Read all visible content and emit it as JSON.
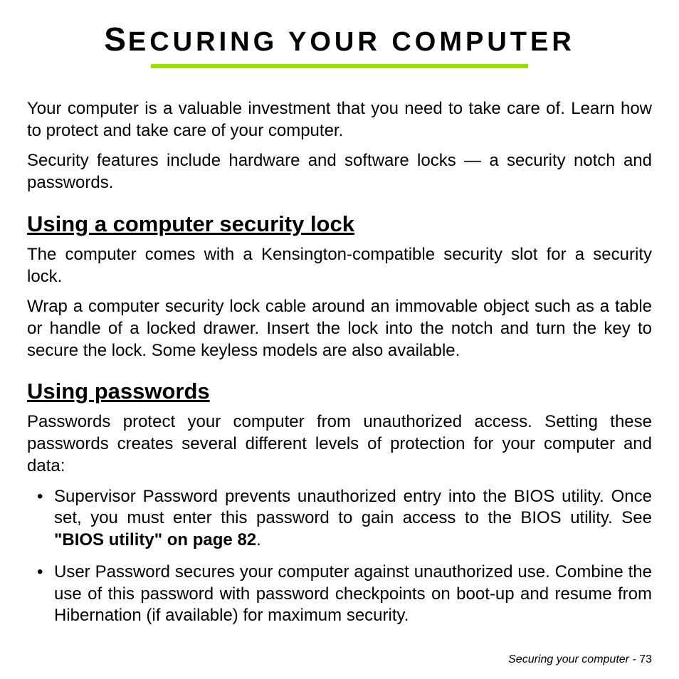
{
  "title": {
    "first_letter": "S",
    "rest": "ECURING YOUR COMPUTER"
  },
  "intro": {
    "p1": "Your computer is a valuable investment that you need to take care of. Learn how to protect and take care of your computer.",
    "p2": "Security features include hardware and software locks — a security notch and passwords."
  },
  "section1": {
    "heading": "Using a computer security lock",
    "p1": "The computer comes with a Kensington-compatible security slot for a security lock.",
    "p2": "Wrap a computer security lock cable around an immovable object such as a table or handle of a locked drawer. Insert the lock into the notch and turn the key to secure the lock. Some keyless models are also available."
  },
  "section2": {
    "heading": "Using passwords",
    "p1": "Passwords protect your computer from unauthorized access. Setting these passwords creates several different levels of protection for your computer and data:",
    "bullets": {
      "b1_pre": "Supervisor Password prevents unauthorized entry into the BIOS utility. Once set, you must enter this password to gain access to the BIOS utility. See ",
      "b1_bold": "\"BIOS utility\" on page 82",
      "b1_post": ".",
      "b2": "User Password secures your computer against unauthorized use. Combine the use of this password with password checkpoints on boot-up and resume from Hibernation (if available) for maximum security."
    }
  },
  "footer": {
    "label": "Securing your computer -  ",
    "page": "73"
  },
  "colors": {
    "underline": "#99e000",
    "text": "#000000",
    "background": "#ffffff"
  }
}
